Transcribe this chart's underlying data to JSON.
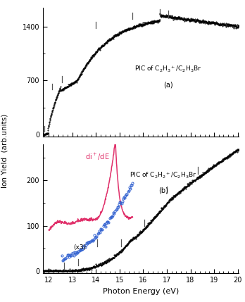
{
  "panel_a": {
    "label": "PIC of C$_2$H$_3$$^+$/C$_2$H$_3$Br",
    "sublabel": "(a)",
    "xmin": 11.75,
    "xmax": 20.05,
    "ymin": -30,
    "ymax": 1650,
    "yticks": [
      0,
      700,
      1400
    ],
    "tick_marks": [
      11.82,
      12.15,
      12.55,
      14.0,
      15.55,
      16.7,
      17.05
    ],
    "tick_mark_heights": [
      30,
      580,
      680,
      1385,
      1505,
      1550,
      1530
    ]
  },
  "panel_b": {
    "label": "PIC of C$_2$H$_2$$^+$/C$_2$H$_3$Br",
    "sublabel": "(b)",
    "xmin": 11.75,
    "xmax": 20.05,
    "ymin": -5,
    "ymax": 280,
    "yticks": [
      0,
      100,
      200
    ],
    "tick_marks_black": [
      12.65,
      13.25,
      14.05,
      15.05,
      16.05,
      17.0,
      18.3
    ],
    "tick_mark_heights_black": [
      3,
      12,
      55,
      55,
      98,
      172,
      215
    ],
    "color_pink": "#e0306a",
    "color_blue": "#3060d0"
  },
  "xlabel": "Photon Energy (eV)",
  "ylabel": "Ion Yield  (arb.units)",
  "background_color": "#ffffff"
}
